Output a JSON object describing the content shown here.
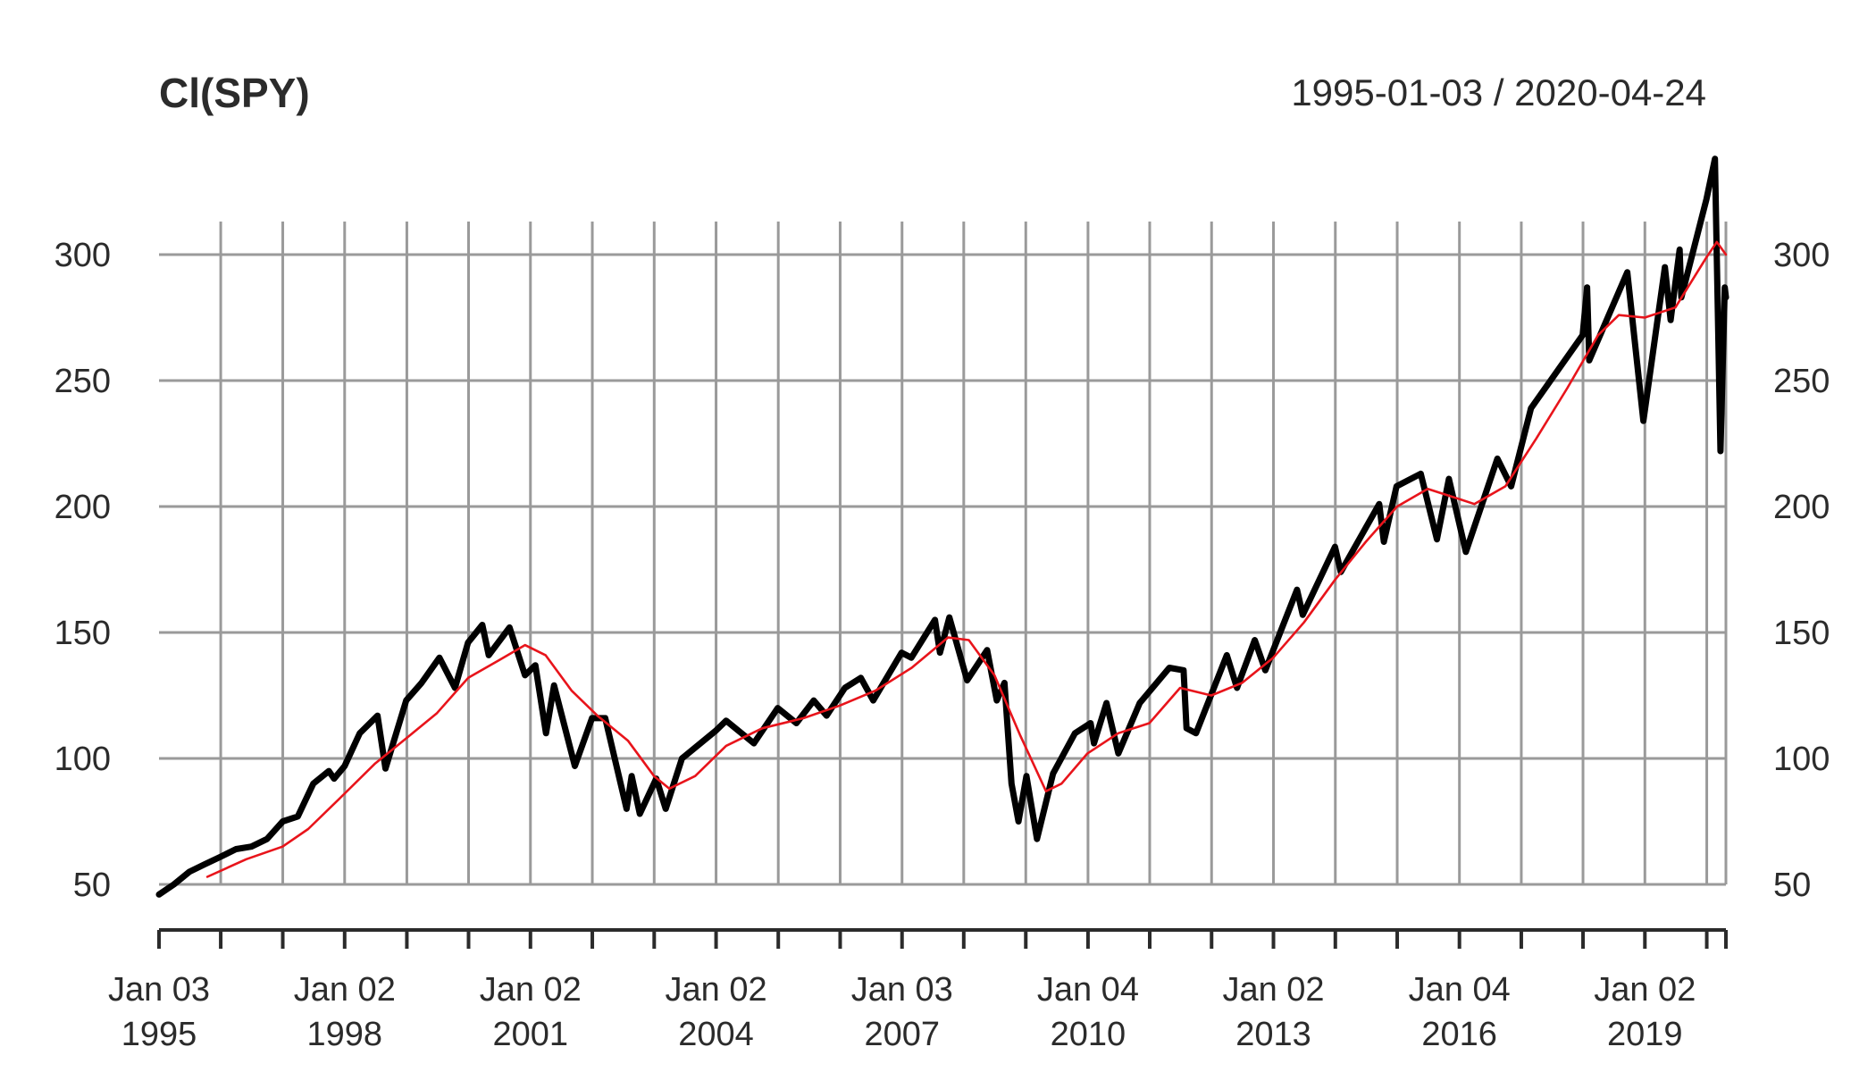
{
  "chart_data": {
    "type": "line",
    "title": "Cl(SPY)",
    "date_range": "1995-01-03 / 2020-04-24",
    "ylim": [
      45,
      335
    ],
    "y_ticks": [
      50,
      100,
      150,
      200,
      250,
      300
    ],
    "xlim": [
      "1995-01-03",
      "2020-04-24"
    ],
    "grid": true,
    "x_tick_dates": [
      "1995-01-03",
      "1996-01-02",
      "1997-01-02",
      "1998-01-02",
      "1999-01-04",
      "2000-01-03",
      "2001-01-02",
      "2002-01-02",
      "2003-01-02",
      "2004-01-02",
      "2005-01-03",
      "2006-01-03",
      "2007-01-03",
      "2008-01-02",
      "2009-01-02",
      "2010-01-04",
      "2011-01-03",
      "2012-01-03",
      "2013-01-02",
      "2014-01-02",
      "2015-01-02",
      "2016-01-04",
      "2017-01-03",
      "2018-01-02",
      "2019-01-02",
      "2020-01-02",
      "2020-04-24"
    ],
    "x_labels": [
      {
        "date": "1995-01-03",
        "line1": "Jan 03",
        "line2": "1995"
      },
      {
        "date": "1998-01-02",
        "line1": "Jan 02",
        "line2": "1998"
      },
      {
        "date": "2001-01-02",
        "line1": "Jan 02",
        "line2": "2001"
      },
      {
        "date": "2004-01-02",
        "line1": "Jan 02",
        "line2": "2004"
      },
      {
        "date": "2007-01-03",
        "line1": "Jan 03",
        "line2": "2007"
      },
      {
        "date": "2010-01-04",
        "line1": "Jan 04",
        "line2": "2010"
      },
      {
        "date": "2013-01-02",
        "line1": "Jan 02",
        "line2": "2013"
      },
      {
        "date": "2016-01-04",
        "line1": "Jan 04",
        "line2": "2016"
      },
      {
        "date": "2019-01-02",
        "line1": "Jan 02",
        "line2": "2019"
      }
    ],
    "series": [
      {
        "color": "#000000",
        "points": [
          [
            "1995-01-03",
            46
          ],
          [
            "1995-04-01",
            50
          ],
          [
            "1995-07-01",
            55
          ],
          [
            "1995-10-01",
            58
          ],
          [
            "1996-01-02",
            61
          ],
          [
            "1996-04-01",
            64
          ],
          [
            "1996-07-01",
            65
          ],
          [
            "1996-10-01",
            68
          ],
          [
            "1997-01-02",
            75
          ],
          [
            "1997-04-01",
            77
          ],
          [
            "1997-07-01",
            90
          ],
          [
            "1997-10-01",
            95
          ],
          [
            "1997-11-01",
            92
          ],
          [
            "1998-01-02",
            97
          ],
          [
            "1998-04-01",
            110
          ],
          [
            "1998-07-15",
            117
          ],
          [
            "1998-08-31",
            96
          ],
          [
            "1998-12-31",
            123
          ],
          [
            "1999-04-01",
            130
          ],
          [
            "1999-07-15",
            140
          ],
          [
            "1999-10-15",
            128
          ],
          [
            "1999-12-31",
            146
          ],
          [
            "2000-03-24",
            153
          ],
          [
            "2000-05-01",
            141
          ],
          [
            "2000-09-01",
            152
          ],
          [
            "2000-12-01",
            133
          ],
          [
            "2001-01-31",
            137
          ],
          [
            "2001-04-04",
            110
          ],
          [
            "2001-05-21",
            129
          ],
          [
            "2001-09-21",
            97
          ],
          [
            "2001-12-31",
            116
          ],
          [
            "2002-03-19",
            116
          ],
          [
            "2002-07-23",
            80
          ],
          [
            "2002-08-22",
            93
          ],
          [
            "2002-10-09",
            78
          ],
          [
            "2003-01-14",
            92
          ],
          [
            "2003-03-11",
            80
          ],
          [
            "2003-06-15",
            100
          ],
          [
            "2003-12-31",
            111
          ],
          [
            "2004-03-01",
            115
          ],
          [
            "2004-08-12",
            106
          ],
          [
            "2004-12-31",
            120
          ],
          [
            "2005-04-20",
            114
          ],
          [
            "2005-07-31",
            123
          ],
          [
            "2005-10-15",
            117
          ],
          [
            "2006-01-31",
            128
          ],
          [
            "2006-05-05",
            132
          ],
          [
            "2006-07-17",
            123
          ],
          [
            "2006-12-31",
            142
          ],
          [
            "2007-02-27",
            140
          ],
          [
            "2007-07-16",
            155
          ],
          [
            "2007-08-15",
            142
          ],
          [
            "2007-10-09",
            156
          ],
          [
            "2008-01-22",
            131
          ],
          [
            "2008-05-19",
            143
          ],
          [
            "2008-07-15",
            123
          ],
          [
            "2008-08-29",
            130
          ],
          [
            "2008-10-10",
            90
          ],
          [
            "2008-11-20",
            75
          ],
          [
            "2009-01-06",
            93
          ],
          [
            "2009-03-09",
            68
          ],
          [
            "2009-06-12",
            94
          ],
          [
            "2009-10-19",
            110
          ],
          [
            "2010-01-19",
            114
          ],
          [
            "2010-02-08",
            106
          ],
          [
            "2010-04-23",
            122
          ],
          [
            "2010-07-02",
            102
          ],
          [
            "2010-11-05",
            122
          ],
          [
            "2011-04-29",
            136
          ],
          [
            "2011-07-22",
            135
          ],
          [
            "2011-08-08",
            112
          ],
          [
            "2011-10-03",
            110
          ],
          [
            "2012-04-02",
            141
          ],
          [
            "2012-06-01",
            128
          ],
          [
            "2012-09-14",
            147
          ],
          [
            "2012-11-15",
            135
          ],
          [
            "2013-05-21",
            167
          ],
          [
            "2013-06-24",
            157
          ],
          [
            "2013-12-31",
            184
          ],
          [
            "2014-02-03",
            174
          ],
          [
            "2014-09-18",
            201
          ],
          [
            "2014-10-15",
            186
          ],
          [
            "2014-12-29",
            208
          ],
          [
            "2015-05-21",
            213
          ],
          [
            "2015-08-24",
            187
          ],
          [
            "2015-11-03",
            211
          ],
          [
            "2016-02-11",
            182
          ],
          [
            "2016-08-15",
            219
          ],
          [
            "2016-11-04",
            208
          ],
          [
            "2017-03-01",
            239
          ],
          [
            "2017-12-31",
            268
          ],
          [
            "2018-01-26",
            287
          ],
          [
            "2018-02-08",
            258
          ],
          [
            "2018-09-20",
            293
          ],
          [
            "2018-12-24",
            234
          ],
          [
            "2019-04-30",
            295
          ],
          [
            "2019-06-03",
            274
          ],
          [
            "2019-07-26",
            302
          ],
          [
            "2019-08-05",
            283
          ],
          [
            "2019-12-31",
            322
          ],
          [
            "2020-02-19",
            338
          ],
          [
            "2020-03-23",
            222
          ],
          [
            "2020-04-17",
            287
          ],
          [
            "2020-04-24",
            283
          ]
        ]
      },
      {
        "color": "#e8141b",
        "points": [
          [
            "1995-10-15",
            53
          ],
          [
            "1996-06-01",
            60
          ],
          [
            "1997-01-01",
            65
          ],
          [
            "1997-06-01",
            72
          ],
          [
            "1998-01-01",
            86
          ],
          [
            "1998-07-01",
            98
          ],
          [
            "1999-01-01",
            108
          ],
          [
            "1999-07-01",
            118
          ],
          [
            "2000-01-01",
            132
          ],
          [
            "2000-07-01",
            139
          ],
          [
            "2000-12-01",
            145
          ],
          [
            "2001-04-01",
            141
          ],
          [
            "2001-09-01",
            127
          ],
          [
            "2002-02-01",
            117
          ],
          [
            "2002-08-01",
            107
          ],
          [
            "2003-01-01",
            93
          ],
          [
            "2003-04-01",
            88
          ],
          [
            "2003-09-01",
            93
          ],
          [
            "2004-03-01",
            105
          ],
          [
            "2004-10-01",
            112
          ],
          [
            "2005-06-01",
            116
          ],
          [
            "2006-01-01",
            121
          ],
          [
            "2006-08-01",
            127
          ],
          [
            "2007-03-01",
            136
          ],
          [
            "2007-10-01",
            148
          ],
          [
            "2008-02-01",
            147
          ],
          [
            "2008-07-01",
            133
          ],
          [
            "2008-12-01",
            109
          ],
          [
            "2009-05-01",
            87
          ],
          [
            "2009-08-01",
            90
          ],
          [
            "2010-01-01",
            102
          ],
          [
            "2010-07-01",
            110
          ],
          [
            "2011-01-01",
            114
          ],
          [
            "2011-07-01",
            128
          ],
          [
            "2012-01-01",
            125
          ],
          [
            "2012-07-01",
            130
          ],
          [
            "2013-01-01",
            140
          ],
          [
            "2013-07-01",
            154
          ],
          [
            "2014-01-01",
            171
          ],
          [
            "2014-07-01",
            186
          ],
          [
            "2015-01-01",
            200
          ],
          [
            "2015-07-01",
            207
          ],
          [
            "2016-01-01",
            203
          ],
          [
            "2016-04-01",
            201
          ],
          [
            "2016-10-01",
            208
          ],
          [
            "2017-04-01",
            227
          ],
          [
            "2017-10-01",
            247
          ],
          [
            "2018-04-01",
            268
          ],
          [
            "2018-08-01",
            276
          ],
          [
            "2019-01-01",
            275
          ],
          [
            "2019-07-01",
            279
          ],
          [
            "2020-01-01",
            299
          ],
          [
            "2020-03-01",
            305
          ],
          [
            "2020-04-24",
            300
          ]
        ]
      }
    ]
  }
}
